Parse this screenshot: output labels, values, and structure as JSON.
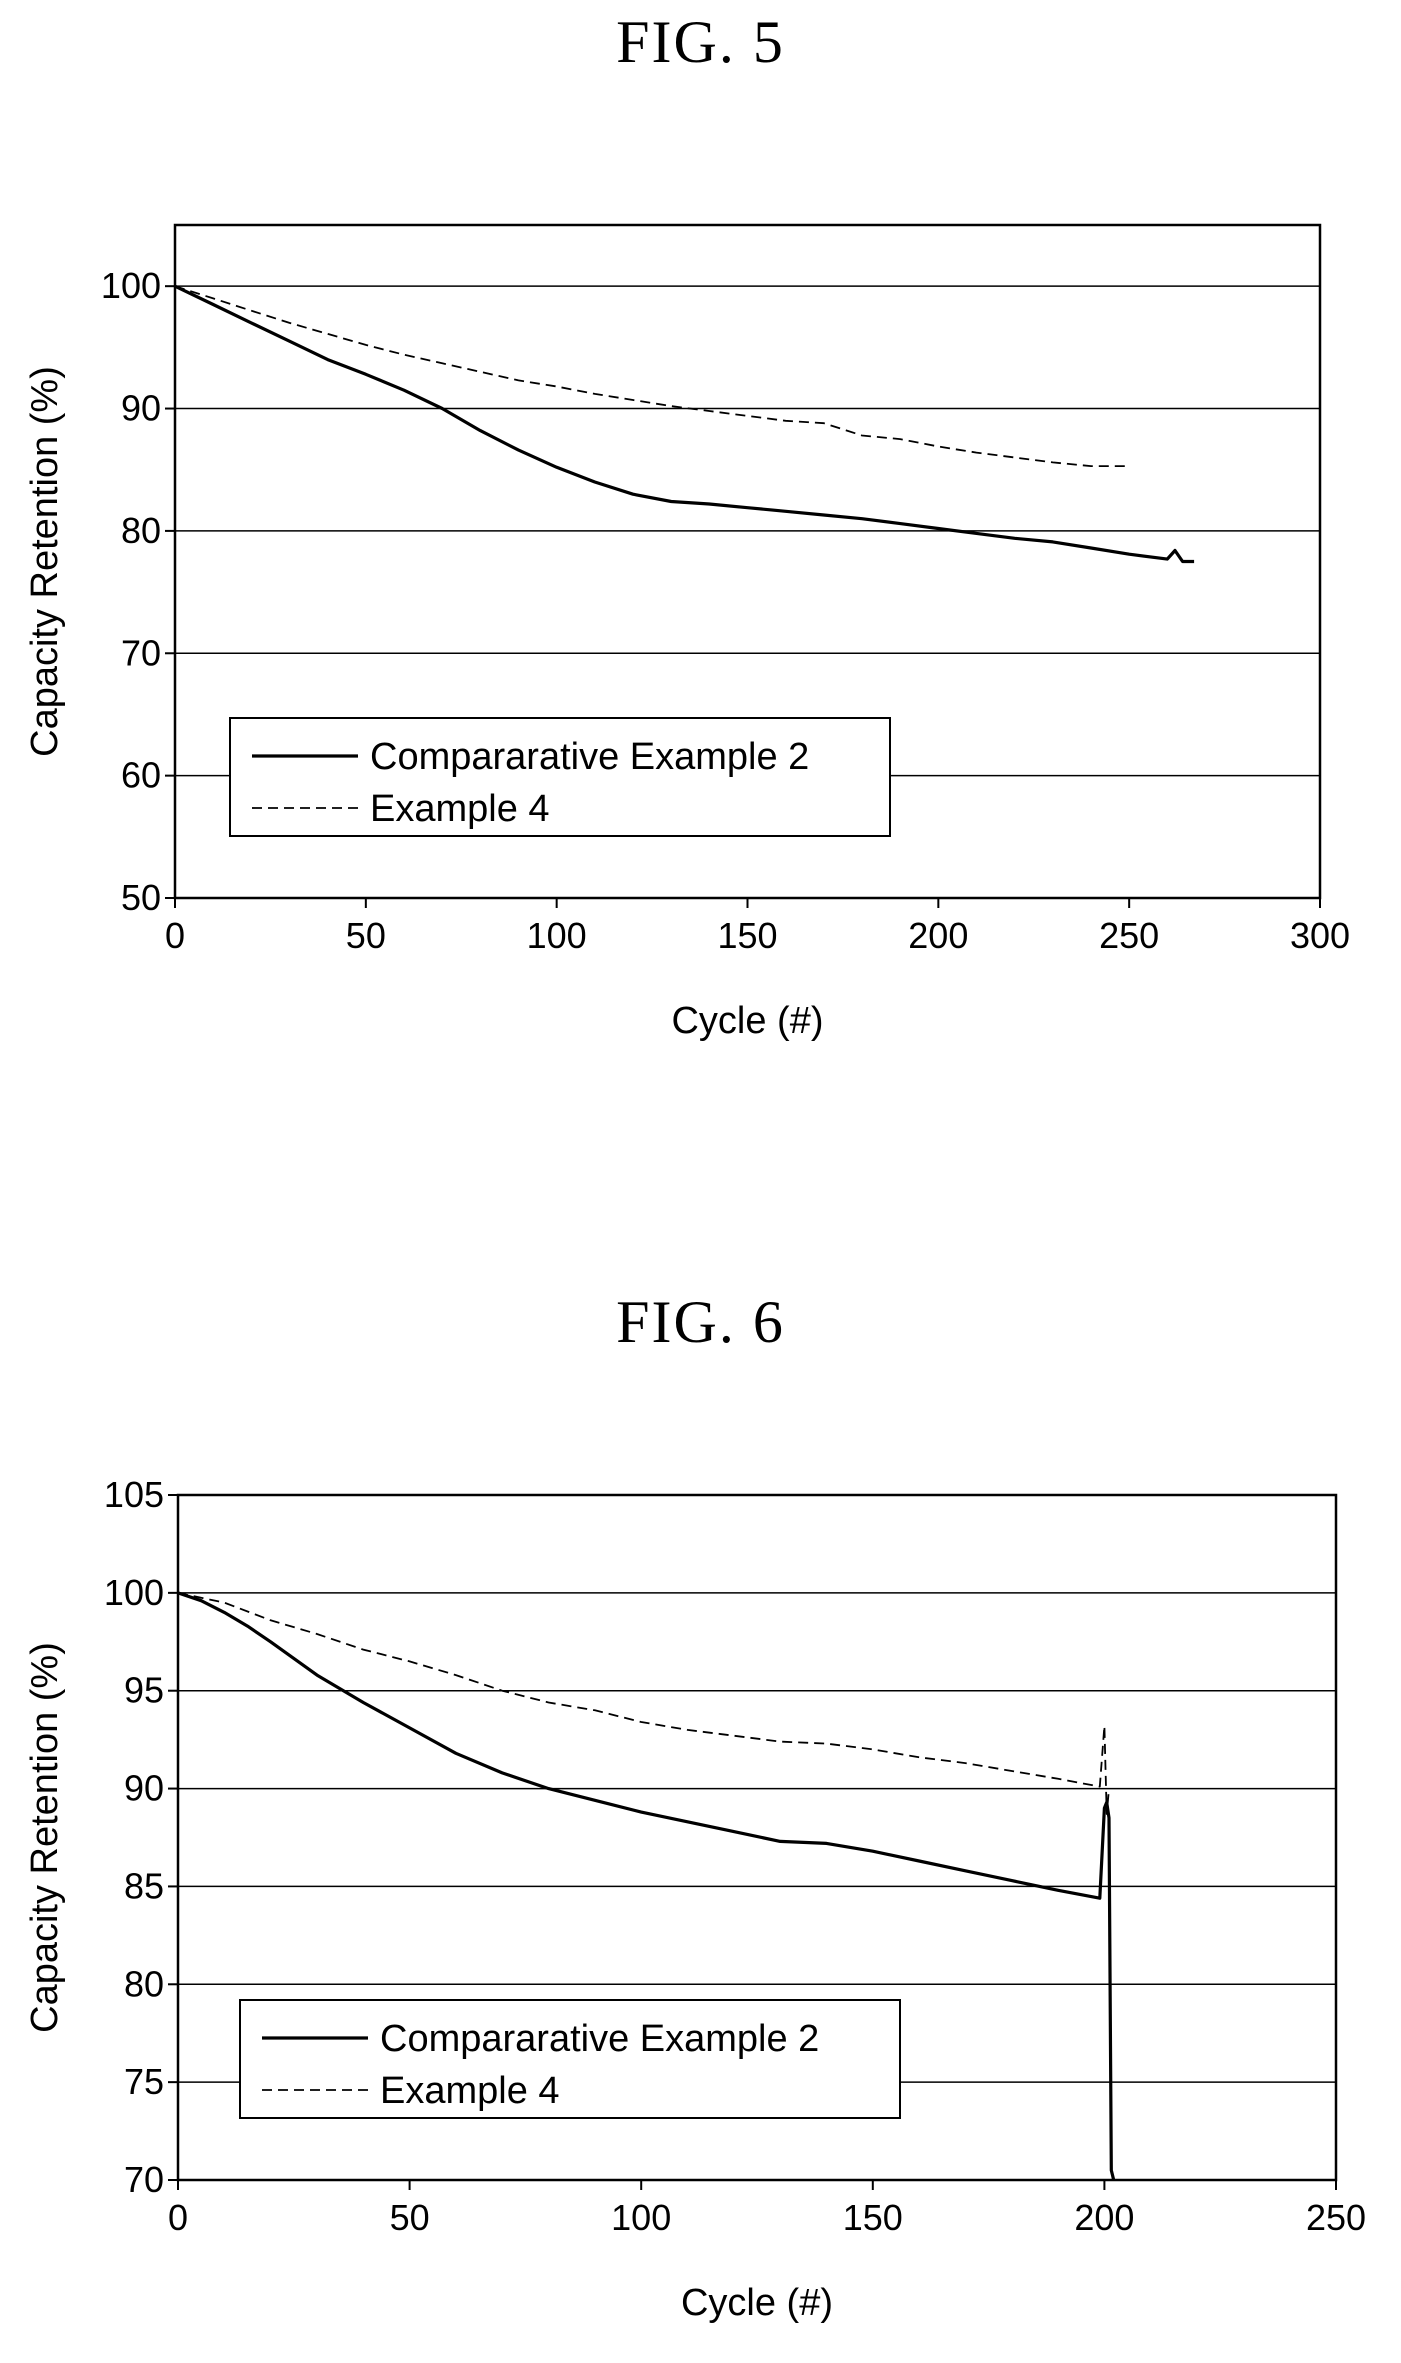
{
  "figures": [
    {
      "label": "FIG. 5"
    },
    {
      "label": "FIG. 6"
    }
  ],
  "chart_data": [
    {
      "type": "line",
      "xlabel": "Cycle (#)",
      "ylabel": "Capacity Retention (%)",
      "xlim": [
        0,
        300
      ],
      "ylim": [
        50,
        105
      ],
      "xticks": [
        0,
        50,
        100,
        150,
        200,
        250,
        300
      ],
      "yticks": [
        50,
        60,
        70,
        80,
        90,
        100
      ],
      "grid": "horizontal",
      "legend_position": "lower-left",
      "series": [
        {
          "name": "Compararative Example 2",
          "style": "solid",
          "color": "#000000",
          "x": [
            0,
            10,
            20,
            30,
            40,
            50,
            60,
            70,
            80,
            90,
            100,
            110,
            120,
            130,
            140,
            150,
            160,
            170,
            180,
            190,
            200,
            210,
            220,
            230,
            240,
            250,
            260,
            262,
            264,
            267
          ],
          "y": [
            100,
            98.5,
            97,
            95.5,
            94,
            92.8,
            91.5,
            90,
            88.2,
            86.6,
            85.2,
            84,
            83,
            82.4,
            82.2,
            81.9,
            81.6,
            81.3,
            81,
            80.6,
            80.2,
            79.8,
            79.4,
            79.1,
            78.6,
            78.1,
            77.7,
            78.4,
            77.5,
            77.5
          ]
        },
        {
          "name": "Example 4",
          "style": "dashed",
          "color": "#000000",
          "x": [
            0,
            10,
            20,
            30,
            40,
            50,
            60,
            70,
            80,
            90,
            100,
            110,
            120,
            130,
            140,
            150,
            160,
            170,
            175,
            180,
            190,
            200,
            210,
            220,
            230,
            240,
            250
          ],
          "y": [
            100,
            99,
            98,
            97,
            96.1,
            95.2,
            94.4,
            93.7,
            93,
            92.3,
            91.8,
            91.2,
            90.7,
            90.2,
            89.8,
            89.4,
            89,
            88.8,
            88.3,
            87.8,
            87.5,
            86.9,
            86.4,
            86,
            85.6,
            85.3,
            85.3
          ]
        }
      ]
    },
    {
      "type": "line",
      "xlabel": "Cycle (#)",
      "ylabel": "Capacity Retention (%)",
      "xlim": [
        0,
        250
      ],
      "ylim": [
        70,
        105
      ],
      "xticks": [
        0,
        50,
        100,
        150,
        200,
        250
      ],
      "yticks": [
        70,
        75,
        80,
        85,
        90,
        95,
        100,
        105
      ],
      "grid": "horizontal",
      "legend_position": "lower-left",
      "series": [
        {
          "name": "Compararative Example 2",
          "style": "solid",
          "color": "#000000",
          "x": [
            0,
            5,
            10,
            15,
            20,
            30,
            40,
            50,
            60,
            70,
            80,
            90,
            100,
            110,
            120,
            130,
            140,
            150,
            160,
            170,
            180,
            190,
            199,
            200,
            200.5,
            201,
            201.5,
            202
          ],
          "y": [
            100,
            99.6,
            99,
            98.3,
            97.5,
            95.8,
            94.4,
            93.1,
            91.8,
            90.8,
            90,
            89.4,
            88.8,
            88.3,
            87.8,
            87.3,
            87.2,
            86.8,
            86.3,
            85.8,
            85.3,
            84.8,
            84.4,
            89,
            89.3,
            88.5,
            70.5,
            70
          ]
        },
        {
          "name": "Example 4",
          "style": "dashed",
          "color": "#000000",
          "x": [
            0,
            10,
            20,
            30,
            40,
            50,
            60,
            70,
            80,
            90,
            100,
            110,
            120,
            130,
            140,
            150,
            160,
            170,
            180,
            190,
            199,
            200,
            200.5,
            201
          ],
          "y": [
            100,
            99.5,
            98.6,
            97.9,
            97.1,
            96.5,
            95.8,
            95,
            94.4,
            94,
            93.4,
            93,
            92.7,
            92.4,
            92.3,
            92,
            91.6,
            91.3,
            90.9,
            90.5,
            90.1,
            93.2,
            88.7,
            90
          ]
        }
      ]
    }
  ]
}
